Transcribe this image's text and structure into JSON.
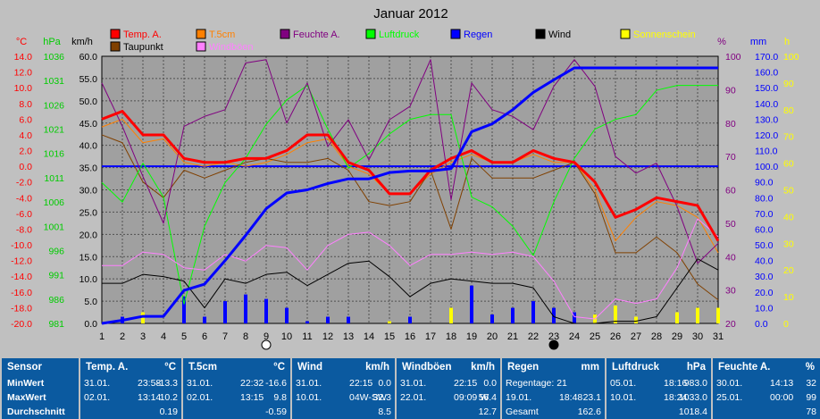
{
  "chart_data": {
    "type": "line",
    "title": "Januar 2012",
    "x": [
      1,
      2,
      3,
      4,
      5,
      6,
      7,
      8,
      9,
      10,
      11,
      12,
      13,
      14,
      15,
      16,
      17,
      18,
      19,
      20,
      21,
      22,
      23,
      24,
      25,
      26,
      27,
      28,
      29,
      30,
      31
    ],
    "axes": {
      "temp": {
        "label": "°C",
        "color": "#ff0000",
        "range": [
          -20,
          14
        ],
        "ticks": [
          "14.0",
          "12.0",
          "10.0",
          "8.0",
          "6.0",
          "4.0",
          "2.0",
          "0.0",
          "-2.0",
          "-4.0",
          "-6.0",
          "-8.0",
          "-10.0",
          "-12.0",
          "-14.0",
          "-16.0",
          "-18.0",
          "-20.0"
        ]
      },
      "pressure": {
        "label": "hPa",
        "color": "#00cc00",
        "range": [
          981,
          1036
        ],
        "ticks": [
          "1036",
          "1031",
          "1026",
          "1021",
          "1016",
          "1011",
          "1006",
          "1001",
          "996",
          "991",
          "986",
          "981"
        ]
      },
      "wind": {
        "label": "km/h",
        "color": "#000000",
        "range": [
          0,
          60
        ],
        "ticks": [
          "60.0",
          "55.0",
          "50.0",
          "45.0",
          "40.0",
          "35.0",
          "30.0",
          "25.0",
          "20.0",
          "15.0",
          "10.0",
          "5.0",
          "0.0"
        ]
      },
      "humidity": {
        "label": "%",
        "color": "#800080",
        "range": [
          20,
          100
        ],
        "ticks": [
          "100",
          "90",
          "80",
          "70",
          "60",
          "50",
          "40",
          "30",
          "20"
        ]
      },
      "rain": {
        "label": "mm",
        "color": "#0000ff",
        "range": [
          0,
          170
        ],
        "ticks": [
          "170.0",
          "160.0",
          "150.0",
          "140.0",
          "130.0",
          "120.0",
          "110.0",
          "100.0",
          "90.0",
          "80.0",
          "70.0",
          "60.0",
          "50.0",
          "40.0",
          "30.0",
          "20.0",
          "10.0",
          "0.0"
        ]
      },
      "sun": {
        "label": "h",
        "color": "#ffff00",
        "range": [
          0,
          100
        ],
        "ticks": [
          "100",
          "90",
          "80",
          "70",
          "60",
          "50",
          "40",
          "30",
          "20",
          "10",
          "0"
        ]
      }
    },
    "legend": [
      {
        "name": "Temp. A.",
        "color": "#ff0000"
      },
      {
        "name": "T.5cm",
        "color": "#ff8000"
      },
      {
        "name": "Feuchte A.",
        "color": "#800080"
      },
      {
        "name": "Luftdruck",
        "color": "#00ff00"
      },
      {
        "name": "Regen",
        "color": "#0000ff"
      },
      {
        "name": "Wind",
        "color": "#000000"
      },
      {
        "name": "Sonnenschein",
        "color": "#ffff00"
      },
      {
        "name": "Taupunkt",
        "color": "#804000"
      },
      {
        "name": "Windböen",
        "color": "#ff80ff"
      }
    ],
    "series": [
      {
        "name": "Temp. A.",
        "axis": "temp",
        "color": "#ff0000",
        "width": 3,
        "values": [
          6.0,
          7.0,
          4.0,
          4.0,
          1.0,
          0.5,
          0.5,
          1.0,
          1.0,
          2.0,
          4.0,
          4.0,
          0.5,
          -0.5,
          -3.5,
          -3.5,
          -0.5,
          1.0,
          2.0,
          0.5,
          0.5,
          2.0,
          1.0,
          0.5,
          -2.0,
          -6.5,
          -5.5,
          -4.0,
          -4.5,
          -5.0,
          -9.5
        ]
      },
      {
        "name": "T.5cm",
        "axis": "temp",
        "color": "#ff8000",
        "width": 1,
        "values": [
          5.0,
          6.0,
          3.0,
          3.5,
          0.5,
          0.0,
          0.5,
          0.0,
          0.5,
          1.5,
          3.0,
          3.5,
          0.0,
          -1.0,
          -3.5,
          -3.5,
          -1.0,
          0.5,
          1.5,
          0.5,
          0.5,
          1.5,
          0.5,
          0.5,
          -3.0,
          -9.5,
          -6.5,
          -4.5,
          -5.0,
          -6.5,
          -11.0
        ]
      },
      {
        "name": "Taupunkt",
        "axis": "temp",
        "color": "#804000",
        "width": 1,
        "values": [
          4.0,
          3.0,
          -2.0,
          -4.0,
          -0.5,
          -1.5,
          -0.5,
          0.5,
          1.0,
          0.5,
          0.5,
          1.0,
          -0.5,
          -4.5,
          -5.0,
          -4.5,
          -0.5,
          -8.0,
          1.0,
          -1.5,
          -1.5,
          -1.5,
          -0.5,
          0.5,
          -3.5,
          -11.0,
          -11.0,
          -9.0,
          -11.0,
          -15.0,
          -17.0
        ]
      },
      {
        "name": "Luftdruck",
        "axis": "pressure",
        "color": "#00ff00",
        "width": 1,
        "values": [
          1010,
          1006,
          1014,
          1007,
          985,
          1001,
          1010,
          1015,
          1022,
          1027,
          1030,
          1021,
          1013,
          1016,
          1020,
          1023,
          1024,
          1024,
          1007,
          1005,
          1001,
          995,
          1006,
          1015,
          1021,
          1023,
          1024,
          1029,
          1030,
          1030,
          1030
        ]
      },
      {
        "name": "Feuchte A.",
        "axis": "humidity",
        "color": "#800080",
        "width": 1,
        "values": [
          92,
          79,
          64,
          50,
          79,
          82,
          84,
          98,
          99,
          80,
          92,
          73,
          81,
          69,
          81,
          85,
          99,
          57,
          92,
          84,
          82,
          78,
          91,
          99,
          91,
          70,
          65,
          68,
          55,
          38,
          44
        ]
      },
      {
        "name": "Regen",
        "axis": "rain",
        "color": "#0000ff",
        "width": 3,
        "values": [
          0.0,
          2.0,
          4.5,
          4.5,
          21.0,
          25.0,
          40.0,
          56.0,
          73.0,
          83.0,
          85.0,
          89.0,
          92.0,
          92.0,
          96.0,
          97.0,
          97.0,
          98.5,
          122.0,
          127.0,
          136.0,
          147.0,
          155.0,
          162.6,
          162.6,
          162.6,
          162.6,
          162.6,
          162.6,
          162.6,
          162.6
        ]
      },
      {
        "name": "Wind",
        "axis": "wind",
        "color": "#000000",
        "width": 1,
        "values": [
          9.0,
          9.0,
          11.0,
          10.5,
          9.5,
          3.5,
          10.0,
          9.0,
          11.0,
          11.5,
          8.5,
          11.0,
          13.5,
          14.0,
          10.5,
          6.0,
          9.0,
          10.0,
          9.5,
          9.0,
          9.0,
          8.0,
          1.5,
          0.0,
          0.0,
          0.5,
          0.5,
          1.5,
          8.0,
          14.5,
          12.0
        ]
      },
      {
        "name": "Windböen",
        "axis": "wind",
        "color": "#ff80ff",
        "width": 1,
        "values": [
          13.0,
          13.0,
          16.0,
          15.5,
          12.5,
          12.0,
          15.5,
          14.0,
          17.5,
          17.0,
          12.0,
          17.5,
          20.0,
          20.5,
          17.5,
          13.0,
          15.5,
          15.5,
          16.0,
          15.5,
          16.0,
          15.0,
          9.5,
          1.5,
          1.0,
          5.5,
          4.5,
          5.5,
          12.5,
          23.5,
          19.5
        ]
      }
    ],
    "reference_lines": [
      {
        "axis": "temp",
        "value": 0.0,
        "color": "#0000ff"
      }
    ],
    "bars": [
      {
        "name": "Regen (Tag)",
        "axis": "wind",
        "color": "#0000ff",
        "values": [
          0.0,
          1.5,
          2.5,
          0.0,
          6.0,
          1.5,
          5.0,
          6.5,
          5.5,
          3.5,
          0.5,
          1.5,
          1.5,
          0.0,
          0.0,
          1.5,
          0.0,
          0.5,
          8.5,
          2.0,
          3.5,
          5.0,
          3.5,
          2.5,
          0.0,
          0.0,
          0.0,
          0.0,
          0.0,
          0.0,
          0.0
        ]
      },
      {
        "name": "Sonnenschein",
        "axis": "wind",
        "color": "#ffff00",
        "values": [
          0.0,
          0.0,
          2.5,
          0.0,
          0.0,
          0.0,
          0.0,
          0.0,
          0.0,
          0.0,
          0.0,
          0.0,
          0.0,
          0.0,
          0.5,
          0.0,
          0.0,
          3.5,
          0.0,
          0.0,
          0.0,
          0.0,
          0.0,
          0.0,
          2.0,
          4.0,
          1.5,
          0.0,
          2.5,
          3.5,
          3.5
        ]
      }
    ],
    "moon": [
      {
        "day": 9,
        "phase": "full"
      },
      {
        "day": 23,
        "phase": "new"
      }
    ],
    "grid": true
  },
  "stats": {
    "labels": [
      "Sensor",
      "MinWert",
      "MaxWert",
      "Durchschnitt"
    ],
    "panels": [
      {
        "title": "Temp. A.",
        "unit": "°C",
        "rows": [
          [
            "31.01.",
            "23:58",
            "-13.3"
          ],
          [
            "02.01.",
            "13:14",
            "10.2"
          ],
          [
            "",
            "",
            "0.19"
          ]
        ]
      },
      {
        "title": "T.5cm",
        "unit": "°C",
        "rows": [
          [
            "31.01.",
            "22:32",
            "-16.6"
          ],
          [
            "02.01.",
            "13:15",
            "9.8"
          ],
          [
            "",
            "",
            "-0.59"
          ]
        ]
      },
      {
        "title": "Wind",
        "unit": "km/h",
        "rows": [
          [
            "31.01.",
            "22:15",
            "0.0"
          ],
          [
            "10.01.",
            "04W-SW",
            "32.3"
          ],
          [
            "",
            "",
            "8.5"
          ]
        ]
      },
      {
        "title": "Windböen",
        "unit": "km/h",
        "rows": [
          [
            "31.01.",
            "22:15",
            "0.0"
          ],
          [
            "22.01.",
            "09:09 W",
            "56.4"
          ],
          [
            "",
            "",
            "12.7"
          ]
        ]
      },
      {
        "title": "Regen",
        "unit": "mm",
        "rows": [
          [
            "Regentage: 21",
            "",
            ""
          ],
          [
            "19.01.",
            "18:48",
            "23.1"
          ],
          [
            "Gesamt",
            "",
            "162.6"
          ]
        ]
      },
      {
        "title": "Luftdruck",
        "unit": "hPa",
        "rows": [
          [
            "05.01.",
            "18:16",
            "983.0"
          ],
          [
            "10.01.",
            "18:24",
            "1033.0"
          ],
          [
            "",
            "",
            "1018.4"
          ]
        ]
      },
      {
        "title": "Feuchte A.",
        "unit": "%",
        "rows": [
          [
            "30.01.",
            "14:13",
            "32"
          ],
          [
            "25.01.",
            "00:00",
            "99"
          ],
          [
            "",
            "",
            "78"
          ]
        ]
      }
    ]
  }
}
